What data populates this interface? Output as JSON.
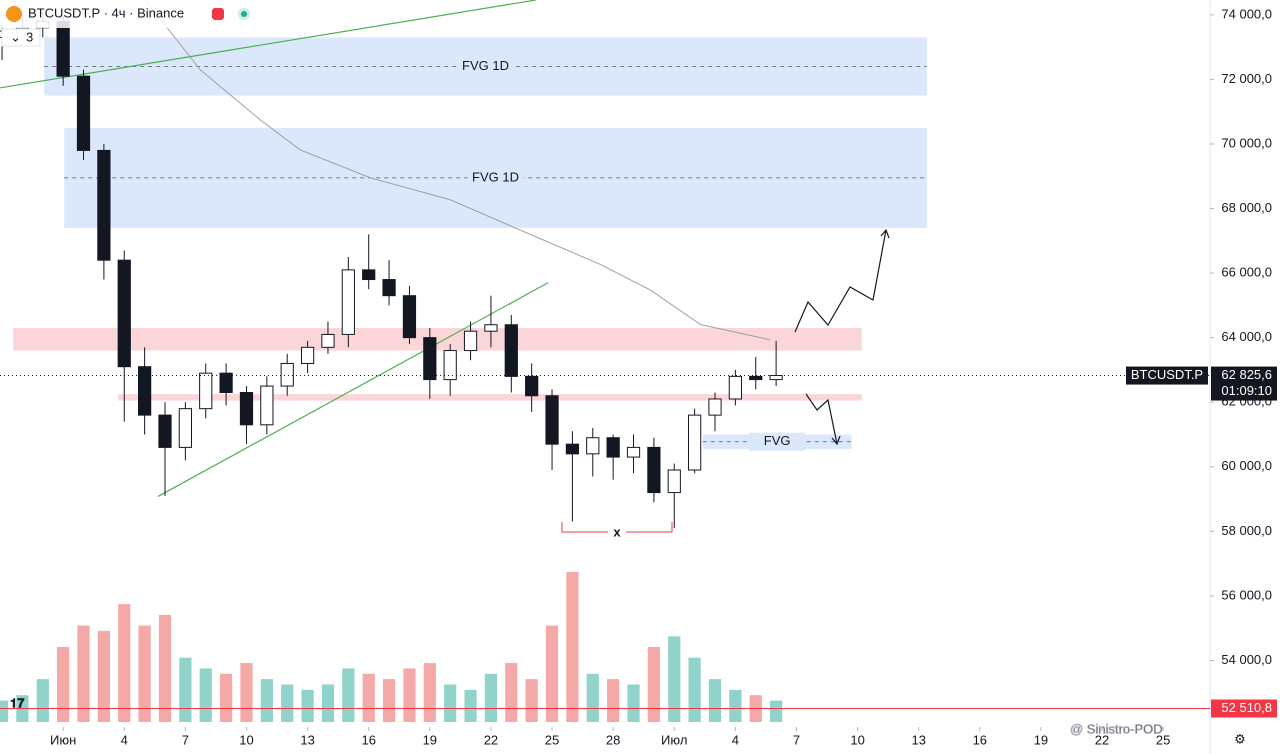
{
  "header": {
    "symbol": "BTCUSDT.P · 4ч · Binance",
    "indicator_count": "3"
  },
  "chart_data": {
    "type": "candlestick",
    "x": [
      -3,
      -2,
      -1,
      0,
      1,
      2,
      3,
      4,
      5,
      6,
      7,
      8,
      9,
      10,
      11,
      12,
      13,
      14,
      15,
      16,
      17,
      18,
      19,
      20,
      21,
      22,
      23,
      24,
      25,
      26,
      27,
      28,
      29,
      30,
      31,
      32,
      33,
      34,
      35
    ],
    "open": [
      73300,
      73500,
      73600,
      73800,
      72100,
      69800,
      66400,
      63100,
      61600,
      60600,
      61800,
      62900,
      62300,
      61300,
      62500,
      63200,
      63700,
      64100,
      66100,
      65800,
      65300,
      64000,
      62700,
      63600,
      64200,
      64400,
      62800,
      62200,
      60700,
      60400,
      60900,
      60300,
      60600,
      59200,
      59900,
      61600,
      62100,
      62800,
      62700
    ],
    "high": [
      73700,
      73900,
      74100,
      74000,
      72300,
      70000,
      66700,
      63700,
      62000,
      62000,
      63200,
      63200,
      62500,
      62800,
      63500,
      63900,
      64500,
      66500,
      67200,
      66400,
      65600,
      64300,
      63800,
      64500,
      65300,
      64700,
      63200,
      62400,
      61100,
      61200,
      61000,
      61000,
      60900,
      60100,
      61800,
      62300,
      63000,
      63400,
      63900
    ],
    "low": [
      72600,
      73100,
      73300,
      71800,
      69500,
      65800,
      61400,
      61000,
      59100,
      60200,
      61500,
      61900,
      60700,
      61000,
      62200,
      62900,
      63500,
      63700,
      65500,
      65000,
      63800,
      62100,
      62200,
      63300,
      63700,
      62300,
      61700,
      59900,
      58300,
      59700,
      59600,
      59800,
      58900,
      58100,
      59800,
      61100,
      61900,
      62400,
      62500
    ],
    "close": [
      73500,
      73600,
      73800,
      72100,
      69800,
      66400,
      63100,
      61600,
      60600,
      61800,
      62900,
      62300,
      61300,
      62500,
      63200,
      63700,
      64100,
      66100,
      65800,
      65300,
      64000,
      62700,
      63600,
      64200,
      64400,
      62800,
      62200,
      60700,
      60400,
      60900,
      60300,
      60600,
      59200,
      59900,
      61600,
      62100,
      62800,
      62700,
      62825.6
    ],
    "volume": [
      20,
      25,
      40,
      70,
      90,
      85,
      110,
      90,
      100,
      60,
      50,
      45,
      55,
      40,
      35,
      30,
      35,
      50,
      45,
      40,
      50,
      55,
      35,
      30,
      45,
      55,
      40,
      90,
      140,
      45,
      40,
      35,
      70,
      80,
      60,
      40,
      30,
      25,
      20
    ],
    "up_color": "#ffffff",
    "down_color": "#131722",
    "volume_up_color": "#8fd3cb",
    "volume_down_color": "#f5a9a6",
    "ylim": [
      52000,
      74460
    ],
    "yticks": [
      {
        "value": 54000,
        "label": "54 000,0"
      },
      {
        "value": 56000,
        "label": "56 000,0"
      },
      {
        "value": 58000,
        "label": "58 000,0"
      },
      {
        "value": 60000,
        "label": "60 000,0"
      },
      {
        "value": 62000,
        "label": "62 000,0"
      },
      {
        "value": 64000,
        "label": "64 000,0"
      },
      {
        "value": 66000,
        "label": "66 000,0"
      },
      {
        "value": 68000,
        "label": "68 000,0"
      },
      {
        "value": 70000,
        "label": "70 000,0"
      },
      {
        "value": 72000,
        "label": "72 000,0"
      },
      {
        "value": 74000,
        "label": "74 000,0"
      }
    ],
    "xlim": [
      -3.1,
      56.3
    ],
    "xticks": [
      {
        "value": 0,
        "label": "Июн"
      },
      {
        "value": 3,
        "label": "4"
      },
      {
        "value": 6,
        "label": "7"
      },
      {
        "value": 9,
        "label": "10"
      },
      {
        "value": 12,
        "label": "13"
      },
      {
        "value": 15,
        "label": "16"
      },
      {
        "value": 18,
        "label": "19"
      },
      {
        "value": 21,
        "label": "22"
      },
      {
        "value": 24,
        "label": "25"
      },
      {
        "value": 27,
        "label": "28"
      },
      {
        "value": 30,
        "label": "Июл"
      },
      {
        "value": 33,
        "label": "4"
      },
      {
        "value": 36,
        "label": "7"
      },
      {
        "value": 39,
        "label": "10"
      },
      {
        "value": 42,
        "label": "13"
      },
      {
        "value": 45,
        "label": "16"
      },
      {
        "value": 48,
        "label": "19"
      },
      {
        "value": 51,
        "label": "22"
      },
      {
        "value": 54,
        "label": "25"
      }
    ],
    "zones": [
      {
        "x": [
          -0.93,
          42.4
        ],
        "y": [
          71500,
          73300
        ],
        "color": "#dbe7fb",
        "label": "FVG 1D"
      },
      {
        "x": [
          0.05,
          42.4
        ],
        "y": [
          67400,
          70500
        ],
        "color": "#dbe7fb",
        "label": "FVG 1D"
      },
      {
        "x": [
          31.4,
          38.7
        ],
        "y": [
          60550,
          61000
        ],
        "color": "#dbe7fb",
        "label": "FVG"
      },
      {
        "x": [
          -2.45,
          39.2
        ],
        "y": [
          63600,
          64300
        ],
        "color": "#fbd6d9"
      },
      {
        "x": [
          2.7,
          39.2
        ],
        "y": [
          62050,
          62250
        ],
        "color": "#fbd6d9"
      }
    ],
    "trendlines": [
      {
        "x": [
          -3.09,
          23.2
        ],
        "y": [
          71740,
          74460
        ],
        "color": "#4caf50"
      },
      {
        "x": [
          4.66,
          23.8
        ],
        "y": [
          59080,
          65700
        ],
        "color": "#4caf50"
      }
    ],
    "moving_average": {
      "x": [
        4.03,
        6.73,
        9.67,
        11.63,
        15.07,
        19.0,
        22.4,
        26.4,
        28.8,
        31.3,
        34.7
      ],
      "values": [
        74464,
        72297,
        70750,
        69820,
        68953,
        68272,
        67343,
        66260,
        65485,
        64402,
        63936
      ],
      "color": "#a0a0a0"
    },
    "last_price": {
      "value": 62825.6,
      "label": "62 825,6",
      "countdown": "01:09:10",
      "symbol": "BTCUSDT.P"
    },
    "marker_line": {
      "value": 52510.8,
      "label": "52 510,8",
      "color": "#f23645"
    },
    "annotation": "x"
  },
  "watermark": "@ Sinistro-POD"
}
